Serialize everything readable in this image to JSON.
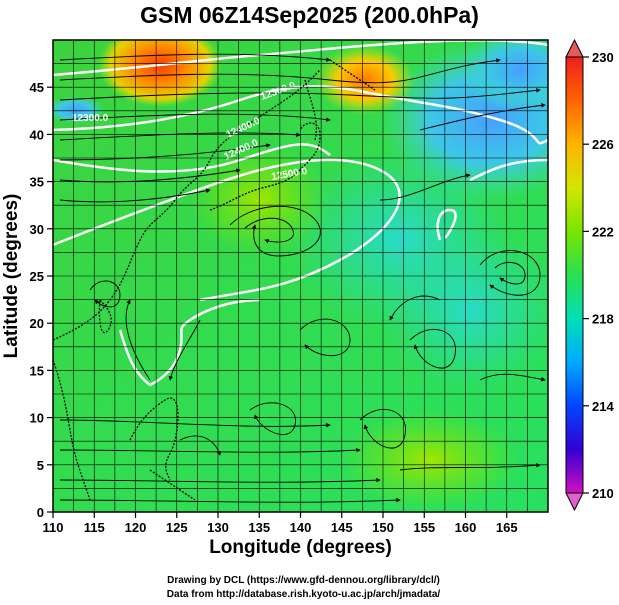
{
  "title": "GSM 06Z14Sep2025 (200.0hPa)",
  "x_axis": {
    "label": "Longitude (degrees)",
    "ticks": [
      "110",
      "115",
      "120",
      "125",
      "130",
      "135",
      "140",
      "145",
      "150",
      "155",
      "160",
      "165"
    ],
    "range": [
      110,
      170
    ]
  },
  "y_axis": {
    "label": "Latitude  (degrees)",
    "ticks": [
      "0",
      "5",
      "10",
      "15",
      "20",
      "25",
      "30",
      "35",
      "40",
      "45"
    ],
    "range": [
      0,
      50
    ]
  },
  "colorbar": {
    "ticks": [
      "230",
      "226",
      "222",
      "218",
      "214",
      "210"
    ],
    "min": 210,
    "max": 230,
    "colors": [
      "#d010c0",
      "#7000c8",
      "#1e00e6",
      "#0048ff",
      "#0096ff",
      "#00c8e6",
      "#00e0b4",
      "#00e678",
      "#28e028",
      "#78e600",
      "#c8e600",
      "#ffd200",
      "#ff9600",
      "#ff5a00",
      "#f01e1e"
    ]
  },
  "contour_labels": [
    "12300.0",
    "12300.0",
    "12400.0",
    "12400.0",
    "12500.0"
  ],
  "credits": {
    "line1": "Drawing by DCL (https://www.gfd-dennou.org/library/dcl/)",
    "line2": "Data from http://database.rish.kyoto-u.ac.jp/arch/jmadata/"
  }
}
